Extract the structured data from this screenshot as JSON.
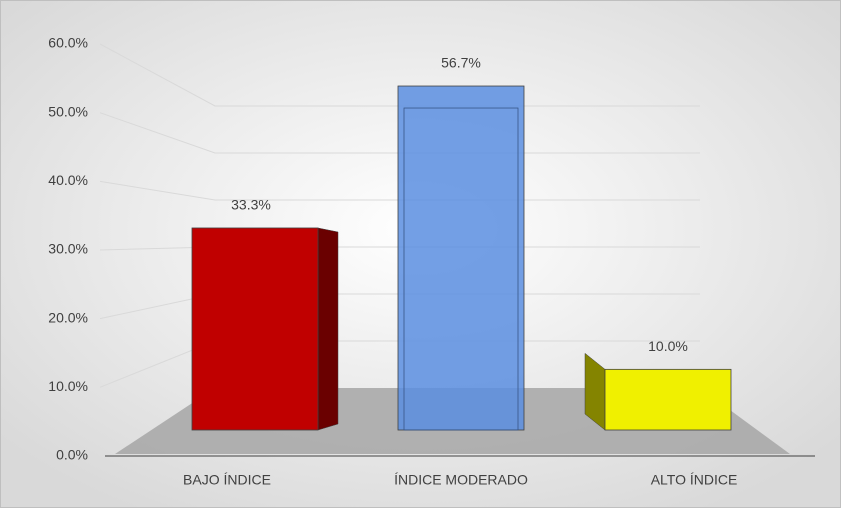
{
  "chart_data": {
    "type": "bar3d",
    "categories": [
      "BAJO ÍNDICE",
      "ÍNDICE MODERADO",
      "ALTO ÍNDICE"
    ],
    "values": [
      33.3,
      56.7,
      10.0
    ],
    "value_labels": [
      "33.3%",
      "56.7%",
      "10.0%"
    ],
    "colors": [
      "#c00000",
      "#5b8ee0",
      "#f0f000"
    ],
    "ylim": [
      0,
      60
    ],
    "yticks": [
      {
        "value": 0,
        "label": "0.0%"
      },
      {
        "value": 10,
        "label": "10.0%"
      },
      {
        "value": 20,
        "label": "20.0%"
      },
      {
        "value": 30,
        "label": "30.0%"
      },
      {
        "value": 40,
        "label": "40.0%"
      },
      {
        "value": 50,
        "label": "50.0%"
      },
      {
        "value": 60,
        "label": "60.0%"
      }
    ],
    "grid": true
  }
}
